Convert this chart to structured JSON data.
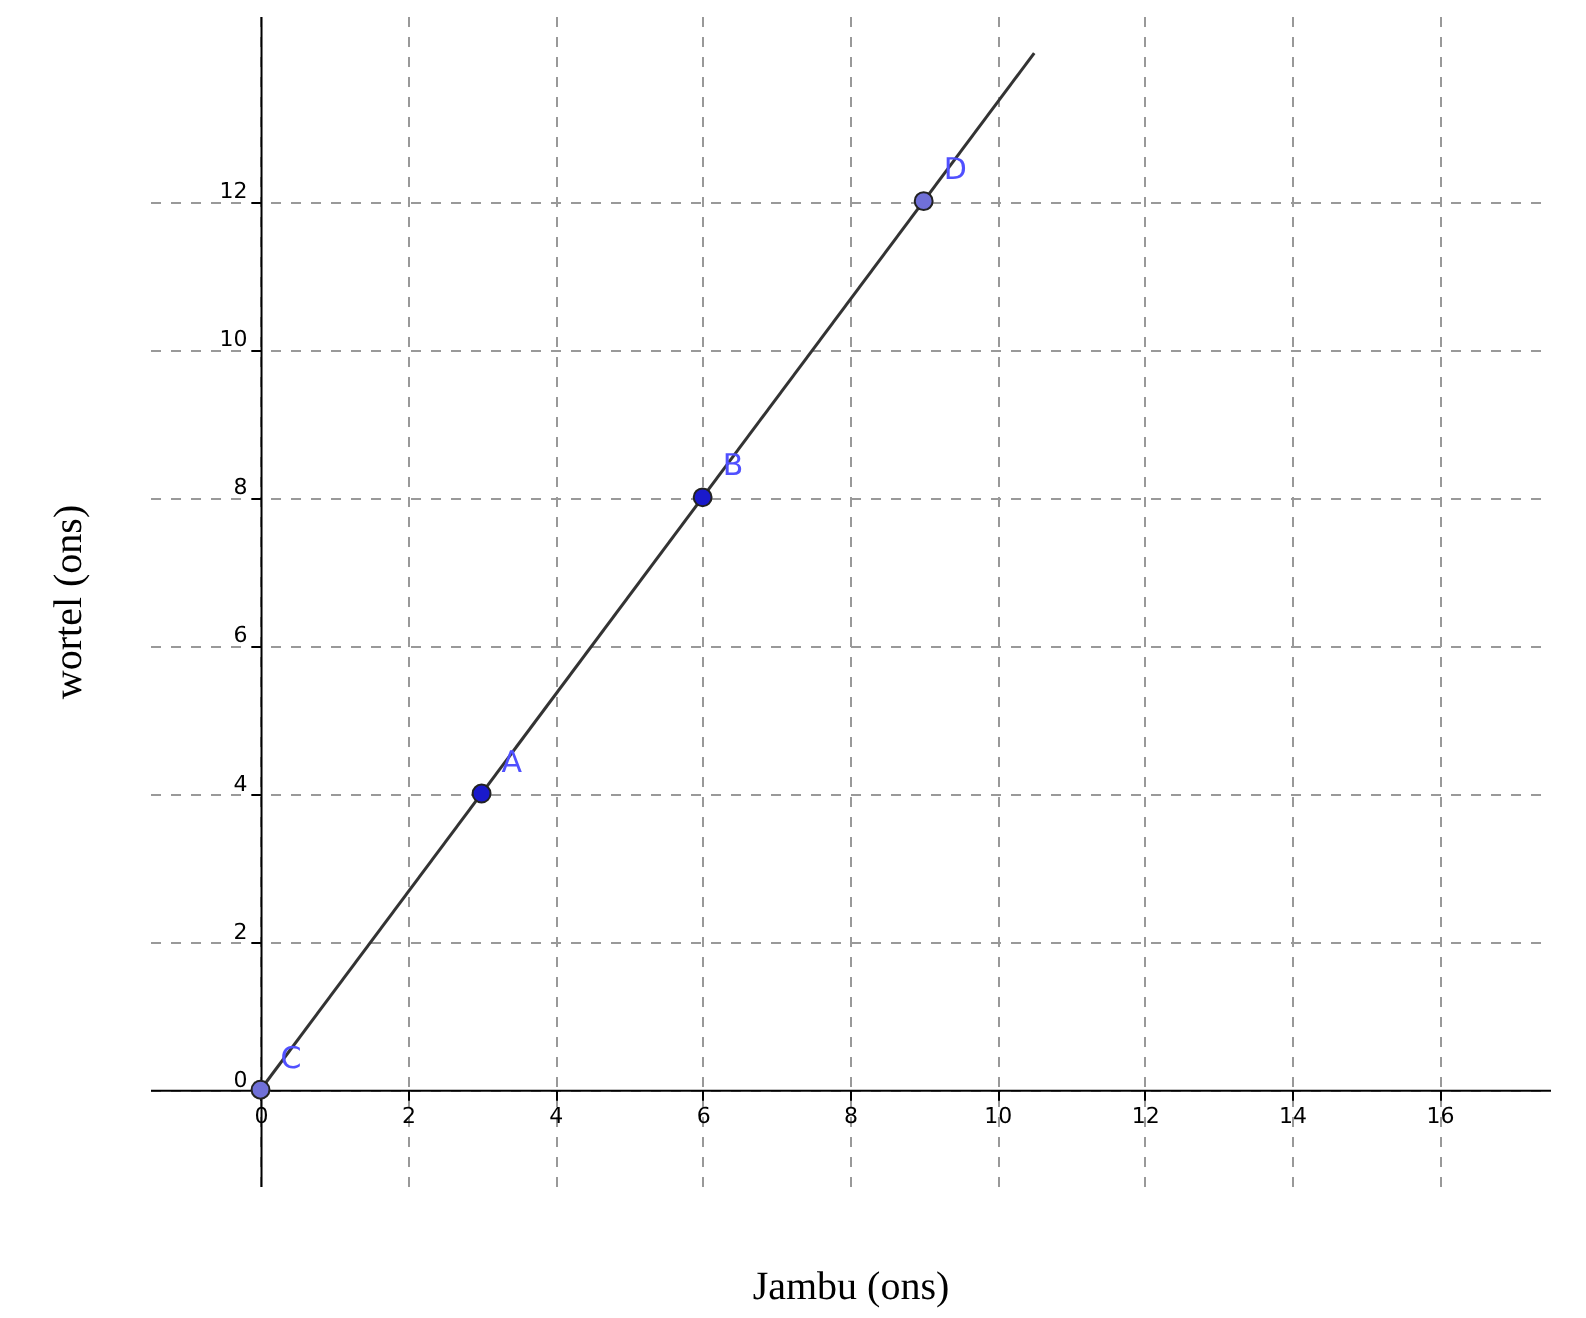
{
  "chart_data": {
    "type": "scatter",
    "xlabel": "Jambu (ons)",
    "ylabel": "wortel (ons)",
    "xlim": [
      -1.5,
      17.5
    ],
    "ylim": [
      -1.3,
      14.5
    ],
    "xticks": [
      0,
      2,
      4,
      6,
      8,
      10,
      12,
      14,
      16
    ],
    "yticks": [
      0,
      2,
      4,
      6,
      8,
      10,
      12
    ],
    "grid": true,
    "marker": "circle",
    "series": [
      {
        "type": "line",
        "marker": "none",
        "color": "#333333",
        "x": [
          0,
          10.5
        ],
        "values": [
          0,
          14
        ]
      },
      {
        "x": [
          0,
          3,
          6,
          9
        ],
        "values": [
          0,
          4,
          8,
          12
        ],
        "colors": [
          "#7070d8",
          "#1a1acc",
          "#1a1acc",
          "#7070d8"
        ]
      }
    ],
    "annotations": [
      {
        "text": "C",
        "x": 0,
        "y": 0
      },
      {
        "text": "A",
        "x": 3,
        "y": 4
      },
      {
        "text": "B",
        "x": 6,
        "y": 8
      },
      {
        "text": "D",
        "x": 9,
        "y": 12
      }
    ]
  }
}
